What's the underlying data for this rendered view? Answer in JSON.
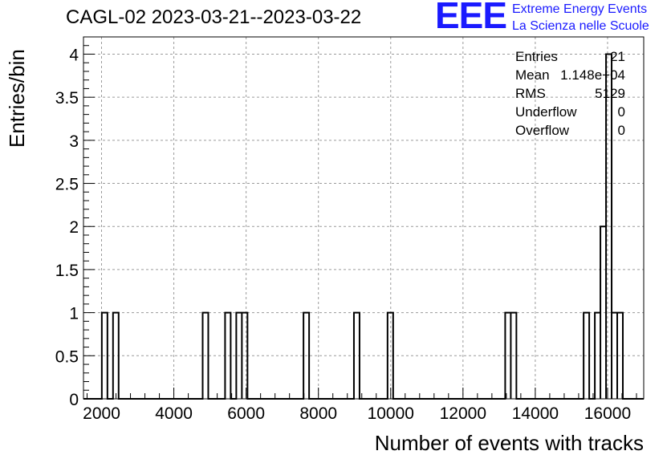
{
  "chart_data": {
    "type": "bar",
    "title": "CAGL-02 2023-03-21--2023-03-22",
    "xlabel": "Number of events with tracks",
    "ylabel": "Entries/bin",
    "xlim": [
      1500,
      17000
    ],
    "ylim": [
      0,
      4.2
    ],
    "x_ticks": [
      "2000",
      "4000",
      "6000",
      "8000",
      "10000",
      "12000",
      "14000",
      "16000"
    ],
    "y_ticks": [
      "0",
      "0.5",
      "1",
      "1.5",
      "2",
      "2.5",
      "3",
      "3.5",
      "4"
    ],
    "grid": true,
    "bin_width": 155,
    "bins": [
      {
        "x": 2085,
        "count": 1
      },
      {
        "x": 2395,
        "count": 1
      },
      {
        "x": 4875,
        "count": 1
      },
      {
        "x": 5495,
        "count": 1
      },
      {
        "x": 5805,
        "count": 1
      },
      {
        "x": 5960,
        "count": 1
      },
      {
        "x": 7665,
        "count": 1
      },
      {
        "x": 9060,
        "count": 1
      },
      {
        "x": 9990,
        "count": 1
      },
      {
        "x": 13245,
        "count": 1
      },
      {
        "x": 13400,
        "count": 1
      },
      {
        "x": 15415,
        "count": 1
      },
      {
        "x": 15725,
        "count": 1
      },
      {
        "x": 15880,
        "count": 2
      },
      {
        "x": 16035,
        "count": 4
      },
      {
        "x": 16190,
        "count": 1
      },
      {
        "x": 16345,
        "count": 1
      }
    ],
    "stats": {
      "entries_label": "Entries",
      "entries": "21",
      "mean_label": "Mean",
      "mean": "1.148e+04",
      "rms_label": "RMS",
      "rms": "5129",
      "underflow_label": "Underflow",
      "underflow": "0",
      "overflow_label": "Overflow",
      "overflow": "0"
    }
  },
  "logo": {
    "mark": "EEE",
    "line1": "Extreme Energy Events",
    "line2": "La Scienza nelle Scuole"
  },
  "colors": {
    "logo": "#1a1aff",
    "grid": "#9a9a9a",
    "line": "#000000"
  }
}
